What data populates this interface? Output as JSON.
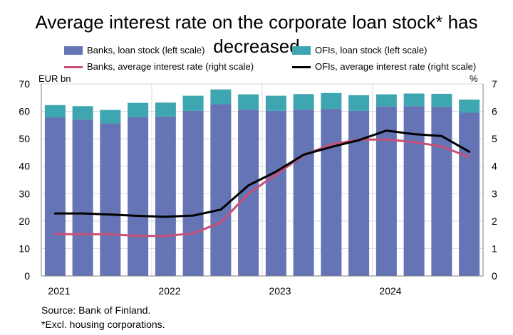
{
  "title": "Average interest rate on the corporate loan stock* has decreased",
  "left_axis_unit": "EUR bn",
  "right_axis_unit": "%",
  "source": "Source: Bank of Finland.",
  "note": "*Excl. housing corporations.",
  "legend": {
    "banks_stock": "Banks, loan stock (left scale)",
    "ofis_stock": "OFIs, loan stock (left scale)",
    "banks_rate": "Banks, average interest rate (right scale)",
    "ofis_rate": "OFIs, average interest rate (right scale)"
  },
  "colors": {
    "banks_stock": "#6474b4",
    "ofis_stock": "#3ea6b0",
    "banks_rate": "#c8507a",
    "ofis_rate": "#000000",
    "grid": "#d9d9d9",
    "axis": "#7f7f7f"
  },
  "chart_data": {
    "type": "bar",
    "stacked": true,
    "quarters_per_year": 4,
    "x_labels": [
      "2021",
      "2022",
      "2023",
      "2024"
    ],
    "left_axis": {
      "ticks": [
        0,
        10,
        20,
        30,
        40,
        50,
        60,
        70
      ],
      "ylim": [
        0,
        70
      ]
    },
    "right_axis": {
      "ticks": [
        0,
        1,
        2,
        3,
        4,
        5,
        6,
        7
      ],
      "ylim": [
        0,
        7
      ]
    },
    "grid": "horizontal",
    "series": [
      {
        "name": "Banks, loan stock (left scale)",
        "kind": "bar",
        "values": [
          57.8,
          57.0,
          55.6,
          58.0,
          58.1,
          60.2,
          62.6,
          60.6,
          60.2,
          60.7,
          60.9,
          60.2,
          61.8,
          61.9,
          61.6,
          59.5
        ]
      },
      {
        "name": "OFIs, loan stock (left scale)",
        "kind": "bar",
        "values": [
          4.5,
          4.9,
          4.9,
          5.1,
          5.1,
          5.5,
          5.4,
          5.6,
          5.5,
          5.6,
          5.8,
          5.7,
          4.4,
          4.6,
          4.8,
          4.8
        ]
      },
      {
        "name": "Banks, average interest rate (right scale)",
        "kind": "line",
        "values": [
          1.53,
          1.52,
          1.52,
          1.46,
          1.46,
          1.55,
          1.95,
          3.0,
          3.7,
          4.4,
          4.8,
          4.97,
          4.97,
          4.88,
          4.72,
          4.33
        ]
      },
      {
        "name": "OFIs, average interest rate (right scale)",
        "kind": "line",
        "values": [
          2.28,
          2.28,
          2.24,
          2.19,
          2.16,
          2.2,
          2.42,
          3.3,
          3.8,
          4.42,
          4.7,
          4.95,
          5.3,
          5.17,
          5.1,
          4.53
        ]
      }
    ]
  }
}
